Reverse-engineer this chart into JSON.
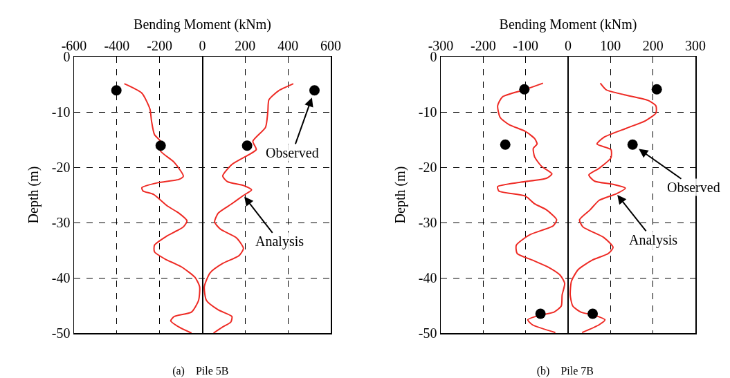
{
  "chart_data": [
    {
      "type": "line",
      "title": "(a)    Pile 5B",
      "xlabel": "Bending Moment (kNm)",
      "ylabel": "Depth (m)",
      "xlim": [
        -600,
        600
      ],
      "xticks": [
        -600,
        -400,
        -200,
        0,
        200,
        400,
        600
      ],
      "ylim": [
        -50,
        0
      ],
      "yticks": [
        -50,
        -40,
        -30,
        -20,
        -10,
        0
      ],
      "grid": true,
      "series": [
        {
          "type": "line",
          "color": "#ee2a24",
          "x": [
            -365,
            -283,
            -245,
            -238,
            -224,
            -191,
            -197,
            -132,
            -89,
            -110,
            -208,
            -283,
            -277,
            -229,
            -164,
            -110,
            -72,
            -89,
            -164,
            -224,
            -224,
            -175,
            -99,
            -35,
            -13,
            -18,
            -51,
            -132,
            -148,
            -110,
            -51
          ],
          "values": [
            -4.9,
            -6.6,
            -9.5,
            -11.6,
            -14.1,
            -15.5,
            -17,
            -19.1,
            -21.6,
            -22.2,
            -22.8,
            -23.7,
            -24.3,
            -24.9,
            -27,
            -28.3,
            -29.7,
            -30.8,
            -32.4,
            -34.1,
            -35.3,
            -36.6,
            -38,
            -39.9,
            -41.6,
            -44.1,
            -46.2,
            -47,
            -47.8,
            -48.9,
            -50
          ]
        },
        {
          "type": "line",
          "color": "#ee2a24",
          "x": [
            425,
            355,
            311,
            306,
            295,
            236,
            252,
            214,
            138,
            95,
            117,
            192,
            230,
            192,
            138,
            74,
            57,
            84,
            160,
            192,
            171,
            95,
            36,
            9,
            19,
            74,
            138,
            133,
            95,
            52
          ],
          "values": [
            -4.9,
            -6.2,
            -7.8,
            -9.9,
            -12.8,
            -15.3,
            -16.8,
            -17.8,
            -19.5,
            -21.6,
            -22.6,
            -23.3,
            -24.1,
            -25.1,
            -26.6,
            -28.3,
            -29.9,
            -31.2,
            -32.8,
            -34.7,
            -36,
            -37.4,
            -39.1,
            -41.6,
            -44.1,
            -45.8,
            -47,
            -48,
            -48.9,
            -50
          ]
        },
        {
          "type": "scatter",
          "color": "#000000",
          "marker": "circle",
          "x": [
            -402,
            -195,
            209,
            524
          ],
          "values": [
            -6.1,
            -16.1,
            -16.1,
            -6.1
          ]
        }
      ],
      "annotations": [
        {
          "text": "Observed",
          "x": 524,
          "y": -6.1
        },
        {
          "text": "Analysis",
          "x": 192,
          "y": -25.1
        }
      ]
    },
    {
      "type": "line",
      "title": "(b)    Pile 7B",
      "xlabel": "Bending Moment (kNm)",
      "ylabel": "Depth (m)",
      "xlim": [
        -300,
        300
      ],
      "xticks": [
        -300,
        -200,
        -100,
        0,
        100,
        200,
        300
      ],
      "ylim": [
        -50,
        0
      ],
      "yticks": [
        -50,
        -40,
        -30,
        -20,
        -10,
        0
      ],
      "grid": true,
      "series": [
        {
          "type": "line",
          "color": "#ee2a24",
          "x": [
            -59,
            -103,
            -155,
            -166,
            -160,
            -139,
            -101,
            -79,
            -73,
            -82,
            -79,
            -63,
            -38,
            -51,
            -111,
            -166,
            -163,
            -101,
            -79,
            -51,
            -27,
            -35,
            -90,
            -122,
            -120,
            -84,
            -46,
            -19,
            -8,
            -14,
            -16,
            -33,
            -68,
            -95,
            -84,
            -30
          ],
          "values": [
            -4.8,
            -6,
            -7.3,
            -8.9,
            -11,
            -12.3,
            -13.5,
            -14.8,
            -15.8,
            -16.6,
            -18.1,
            -19.8,
            -21.2,
            -22,
            -22.7,
            -23.5,
            -24.3,
            -25.2,
            -26.6,
            -27.7,
            -29.5,
            -30.6,
            -32.2,
            -34.1,
            -35.6,
            -36.8,
            -38.1,
            -39.5,
            -41,
            -43.1,
            -45.1,
            -46.2,
            -46.8,
            -47.6,
            -48.5,
            -49.9
          ]
        },
        {
          "type": "line",
          "color": "#ee2a24",
          "x": [
            76,
            90,
            133,
            188,
            207,
            207,
            182,
            139,
            84,
            68,
            101,
            101,
            73,
            49,
            62,
            106,
            135,
            114,
            73,
            52,
            27,
            35,
            84,
            106,
            95,
            57,
            24,
            8,
            5,
            11,
            30,
            63,
            87,
            73,
            33
          ],
          "values": [
            -4.8,
            -6,
            -6.9,
            -7.9,
            -8.9,
            -10.2,
            -11.6,
            -12.9,
            -14.6,
            -15.8,
            -16.8,
            -18.3,
            -20.2,
            -21.4,
            -22.5,
            -23.1,
            -23.8,
            -24.8,
            -26,
            -27.7,
            -29.5,
            -30.8,
            -32.7,
            -34.5,
            -35.6,
            -36.8,
            -38.5,
            -40.6,
            -43.1,
            -45.1,
            -46.2,
            -46.8,
            -47.6,
            -48.5,
            -49.9
          ]
        },
        {
          "type": "scatter",
          "color": "#000000",
          "marker": "circle",
          "x": [
            -103,
            -148,
            152,
            209,
            -65,
            58
          ],
          "values": [
            -5.9,
            -15.9,
            -15.9,
            -5.9,
            -46.5,
            -46.5
          ]
        }
      ],
      "annotations": [
        {
          "text": "Observed",
          "x": 152,
          "y": -15.9
        },
        {
          "text": "Analysis",
          "x": 114,
          "y": -24.8
        }
      ]
    }
  ]
}
